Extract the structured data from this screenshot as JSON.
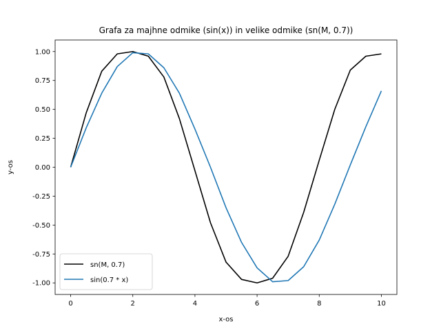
{
  "chart_data": {
    "type": "line",
    "title": "Grafa za majhne odmike (sin(x)) in velike odmike (sn(M, 0.7))",
    "xlabel": "x-os",
    "ylabel": "y-os",
    "xlim": [
      -0.5,
      10.5
    ],
    "ylim": [
      -1.1,
      1.1
    ],
    "xticks": [
      0,
      2,
      4,
      6,
      8,
      10
    ],
    "yticks": [
      -1.0,
      -0.75,
      -0.5,
      -0.25,
      0.0,
      0.25,
      0.5,
      0.75,
      1.0
    ],
    "grid": false,
    "legend_position": "lower-left",
    "series": [
      {
        "name": "sn(M, 0.7)",
        "color": "#000000",
        "x": [
          0,
          0.5,
          1,
          1.5,
          2,
          2.5,
          3,
          3.5,
          4,
          4.5,
          5,
          5.5,
          6,
          6.5,
          7,
          7.5,
          8,
          8.5,
          9,
          9.5,
          10
        ],
        "y": [
          0,
          0.47,
          0.83,
          0.98,
          1.0,
          0.96,
          0.78,
          0.42,
          -0.03,
          -0.48,
          -0.82,
          -0.97,
          -1.0,
          -0.96,
          -0.77,
          -0.39,
          0.06,
          0.5,
          0.84,
          0.96,
          0.98
        ]
      },
      {
        "name": "sin(0.7 * x)",
        "color": "#1f77b4",
        "x": [
          0,
          0.5,
          1,
          1.5,
          2,
          2.5,
          3,
          3.5,
          4,
          4.5,
          5,
          5.5,
          6,
          6.5,
          7,
          7.5,
          8,
          8.5,
          9,
          9.5,
          10
        ],
        "y": [
          0,
          0.34,
          0.64,
          0.87,
          0.99,
          0.98,
          0.86,
          0.64,
          0.33,
          0.0,
          -0.35,
          -0.65,
          -0.87,
          -0.99,
          -0.98,
          -0.86,
          -0.63,
          -0.32,
          0.02,
          0.35,
          0.66
        ]
      }
    ]
  }
}
